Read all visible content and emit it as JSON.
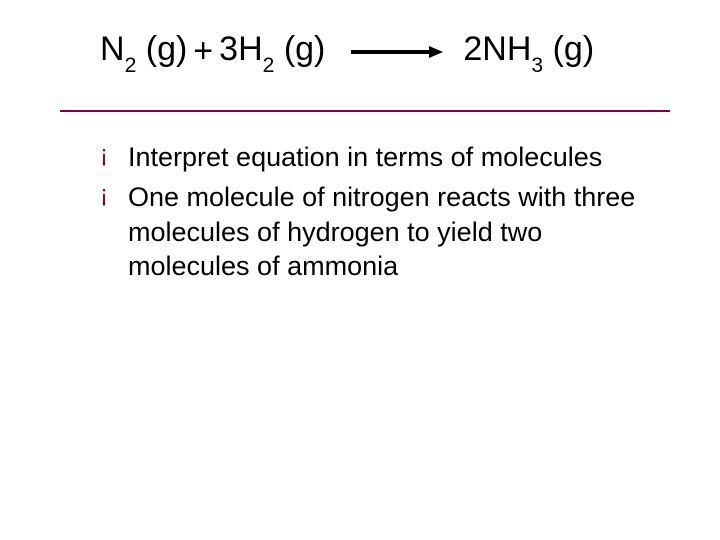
{
  "underline_color": "#800040",
  "bullet_color": "#800040",
  "title": {
    "term1": {
      "base": "N",
      "subscript": "2",
      "phase": " (g)"
    },
    "plus": "  +  ",
    "term2": {
      "coef": "3",
      "base": "H",
      "subscript": "2",
      "phase": " (g)"
    },
    "arrow": {
      "width": 92,
      "height": 12,
      "stroke": "#000000",
      "stroke_width": 4
    },
    "term3": {
      "coef": "2",
      "base": "NH",
      "subscript": "3",
      "phase": " (g)"
    },
    "fontsize": 34
  },
  "bullets": [
    "Interpret equation in terms of molecules",
    "One molecule of nitrogen reacts with three molecules of hydrogen to yield two molecules of ammonia"
  ],
  "body_fontsize": 27
}
